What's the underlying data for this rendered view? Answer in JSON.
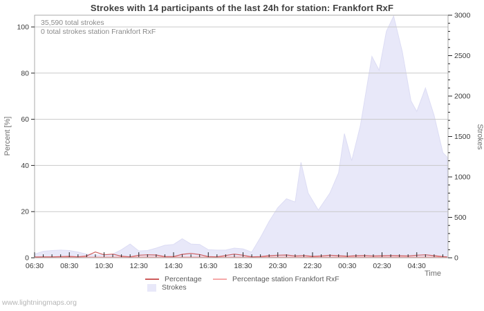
{
  "page": {
    "title": "Strokes with 14 participants of the last 24h for station: Frankfort RxF",
    "footer_link": "www.lightningmaps.org"
  },
  "chart_data": {
    "type": "area",
    "title": "Strokes with 14 participants of the last 24h for station: Frankfort RxF",
    "annotations": [
      "35,590 total strokes",
      "0 total strokes station Frankfort RxF"
    ],
    "x_axis": {
      "label": "Time",
      "start": "06:30",
      "span_hours": 23.8,
      "major_tick_labels": [
        "06:30",
        "08:30",
        "10:30",
        "12:30",
        "14:30",
        "16:30",
        "18:30",
        "20:30",
        "22:30",
        "00:30",
        "02:30",
        "04:30"
      ],
      "minor_step_minutes": 30
    },
    "left_axis": {
      "label": "Percent  [%]",
      "ticks": [
        0,
        20,
        40,
        60,
        80,
        100
      ],
      "range": [
        0,
        100
      ]
    },
    "right_axis": {
      "label": "Strokes",
      "ticks": [
        0,
        500,
        1000,
        1500,
        2000,
        2500,
        3000
      ],
      "minor_step": 100,
      "range": [
        0,
        3000
      ]
    },
    "grid": "horizontal",
    "colors": {
      "strokes_fill": "#e8e8f9",
      "strokes_edge": "#dcdcf4",
      "percentage": "#cd5a5a",
      "station_percentage": "#f5a8a8",
      "gridline": "#c9c9c9",
      "frame": "#a9a9a9",
      "tick": "#222222"
    },
    "series": [
      {
        "name": "Strokes",
        "kind": "area",
        "axis": "right",
        "points": [
          [
            "06:30",
            45
          ],
          [
            "07:00",
            80
          ],
          [
            "07:30",
            90
          ],
          [
            "08:00",
            95
          ],
          [
            "08:30",
            90
          ],
          [
            "09:00",
            70
          ],
          [
            "09:30",
            45
          ],
          [
            "10:00",
            35
          ],
          [
            "10:30",
            35
          ],
          [
            "11:00",
            45
          ],
          [
            "11:30",
            100
          ],
          [
            "12:00",
            170
          ],
          [
            "12:30",
            85
          ],
          [
            "13:00",
            90
          ],
          [
            "13:30",
            120
          ],
          [
            "14:00",
            155
          ],
          [
            "14:30",
            165
          ],
          [
            "15:00",
            235
          ],
          [
            "15:30",
            170
          ],
          [
            "16:00",
            165
          ],
          [
            "16:30",
            100
          ],
          [
            "17:00",
            95
          ],
          [
            "17:30",
            95
          ],
          [
            "18:00",
            120
          ],
          [
            "18:30",
            110
          ],
          [
            "19:00",
            70
          ],
          [
            "19:30",
            250
          ],
          [
            "20:00",
            450
          ],
          [
            "20:30",
            620
          ],
          [
            "21:00",
            730
          ],
          [
            "21:30",
            690
          ],
          [
            "21:50",
            1180
          ],
          [
            "22:15",
            800
          ],
          [
            "22:50",
            590
          ],
          [
            "23:30",
            800
          ],
          [
            "00:00",
            1050
          ],
          [
            "00:20",
            1535
          ],
          [
            "00:45",
            1200
          ],
          [
            "01:15",
            1630
          ],
          [
            "01:55",
            2490
          ],
          [
            "02:20",
            2320
          ],
          [
            "02:45",
            2800
          ],
          [
            "03:10",
            2990
          ],
          [
            "03:40",
            2550
          ],
          [
            "04:10",
            1940
          ],
          [
            "04:30",
            1810
          ],
          [
            "05:00",
            2100
          ],
          [
            "05:30",
            1760
          ],
          [
            "06:00",
            1300
          ],
          [
            "06:15",
            1245
          ]
        ]
      },
      {
        "name": "Percentage",
        "kind": "line",
        "axis": "left",
        "points": [
          [
            "06:30",
            0.3
          ],
          [
            "07:00",
            0.4
          ],
          [
            "07:30",
            0.4
          ],
          [
            "08:00",
            0.5
          ],
          [
            "08:30",
            0.6
          ],
          [
            "09:00",
            0.4
          ],
          [
            "09:30",
            0.8
          ],
          [
            "10:00",
            2.5
          ],
          [
            "10:30",
            1.3
          ],
          [
            "11:00",
            1.6
          ],
          [
            "11:30",
            0.7
          ],
          [
            "12:00",
            0.4
          ],
          [
            "12:30",
            1.1
          ],
          [
            "13:00",
            1.3
          ],
          [
            "13:30",
            1.2
          ],
          [
            "14:00",
            0.5
          ],
          [
            "14:30",
            0.5
          ],
          [
            "15:00",
            1.5
          ],
          [
            "15:30",
            1.9
          ],
          [
            "16:00",
            1.4
          ],
          [
            "16:30",
            0.5
          ],
          [
            "17:00",
            0.4
          ],
          [
            "17:30",
            1.0
          ],
          [
            "18:00",
            1.6
          ],
          [
            "18:30",
            1.1
          ],
          [
            "19:00",
            0.4
          ],
          [
            "19:30",
            0.5
          ],
          [
            "20:00",
            0.9
          ],
          [
            "20:30",
            1.1
          ],
          [
            "21:00",
            1.2
          ],
          [
            "21:30",
            0.8
          ],
          [
            "22:00",
            1.0
          ],
          [
            "22:30",
            0.6
          ],
          [
            "23:00",
            0.8
          ],
          [
            "23:30",
            1.1
          ],
          [
            "00:00",
            0.9
          ],
          [
            "00:30",
            0.7
          ],
          [
            "01:00",
            0.9
          ],
          [
            "01:30",
            1.0
          ],
          [
            "02:00",
            0.8
          ],
          [
            "02:30",
            0.9
          ],
          [
            "03:00",
            1.0
          ],
          [
            "03:30",
            0.9
          ],
          [
            "04:00",
            0.8
          ],
          [
            "04:30",
            1.1
          ],
          [
            "05:00",
            1.3
          ],
          [
            "05:30",
            0.9
          ],
          [
            "06:00",
            0.5
          ],
          [
            "06:15",
            0.4
          ]
        ]
      },
      {
        "name": "Percentage station Frankfort RxF",
        "kind": "line",
        "axis": "left",
        "points": [
          [
            "06:30",
            0
          ],
          [
            "12:30",
            0
          ],
          [
            "18:30",
            0
          ],
          [
            "00:30",
            0
          ],
          [
            "06:15",
            0
          ]
        ]
      }
    ],
    "legend": {
      "items": [
        {
          "label": "Percentage",
          "swatch": "line",
          "color": "#cd5a5a"
        },
        {
          "label": "Percentage station Frankfort RxF",
          "swatch": "line",
          "color": "#f5a8a8"
        },
        {
          "label": "Strokes",
          "swatch": "fill",
          "color": "#e8e8f9"
        }
      ]
    }
  }
}
